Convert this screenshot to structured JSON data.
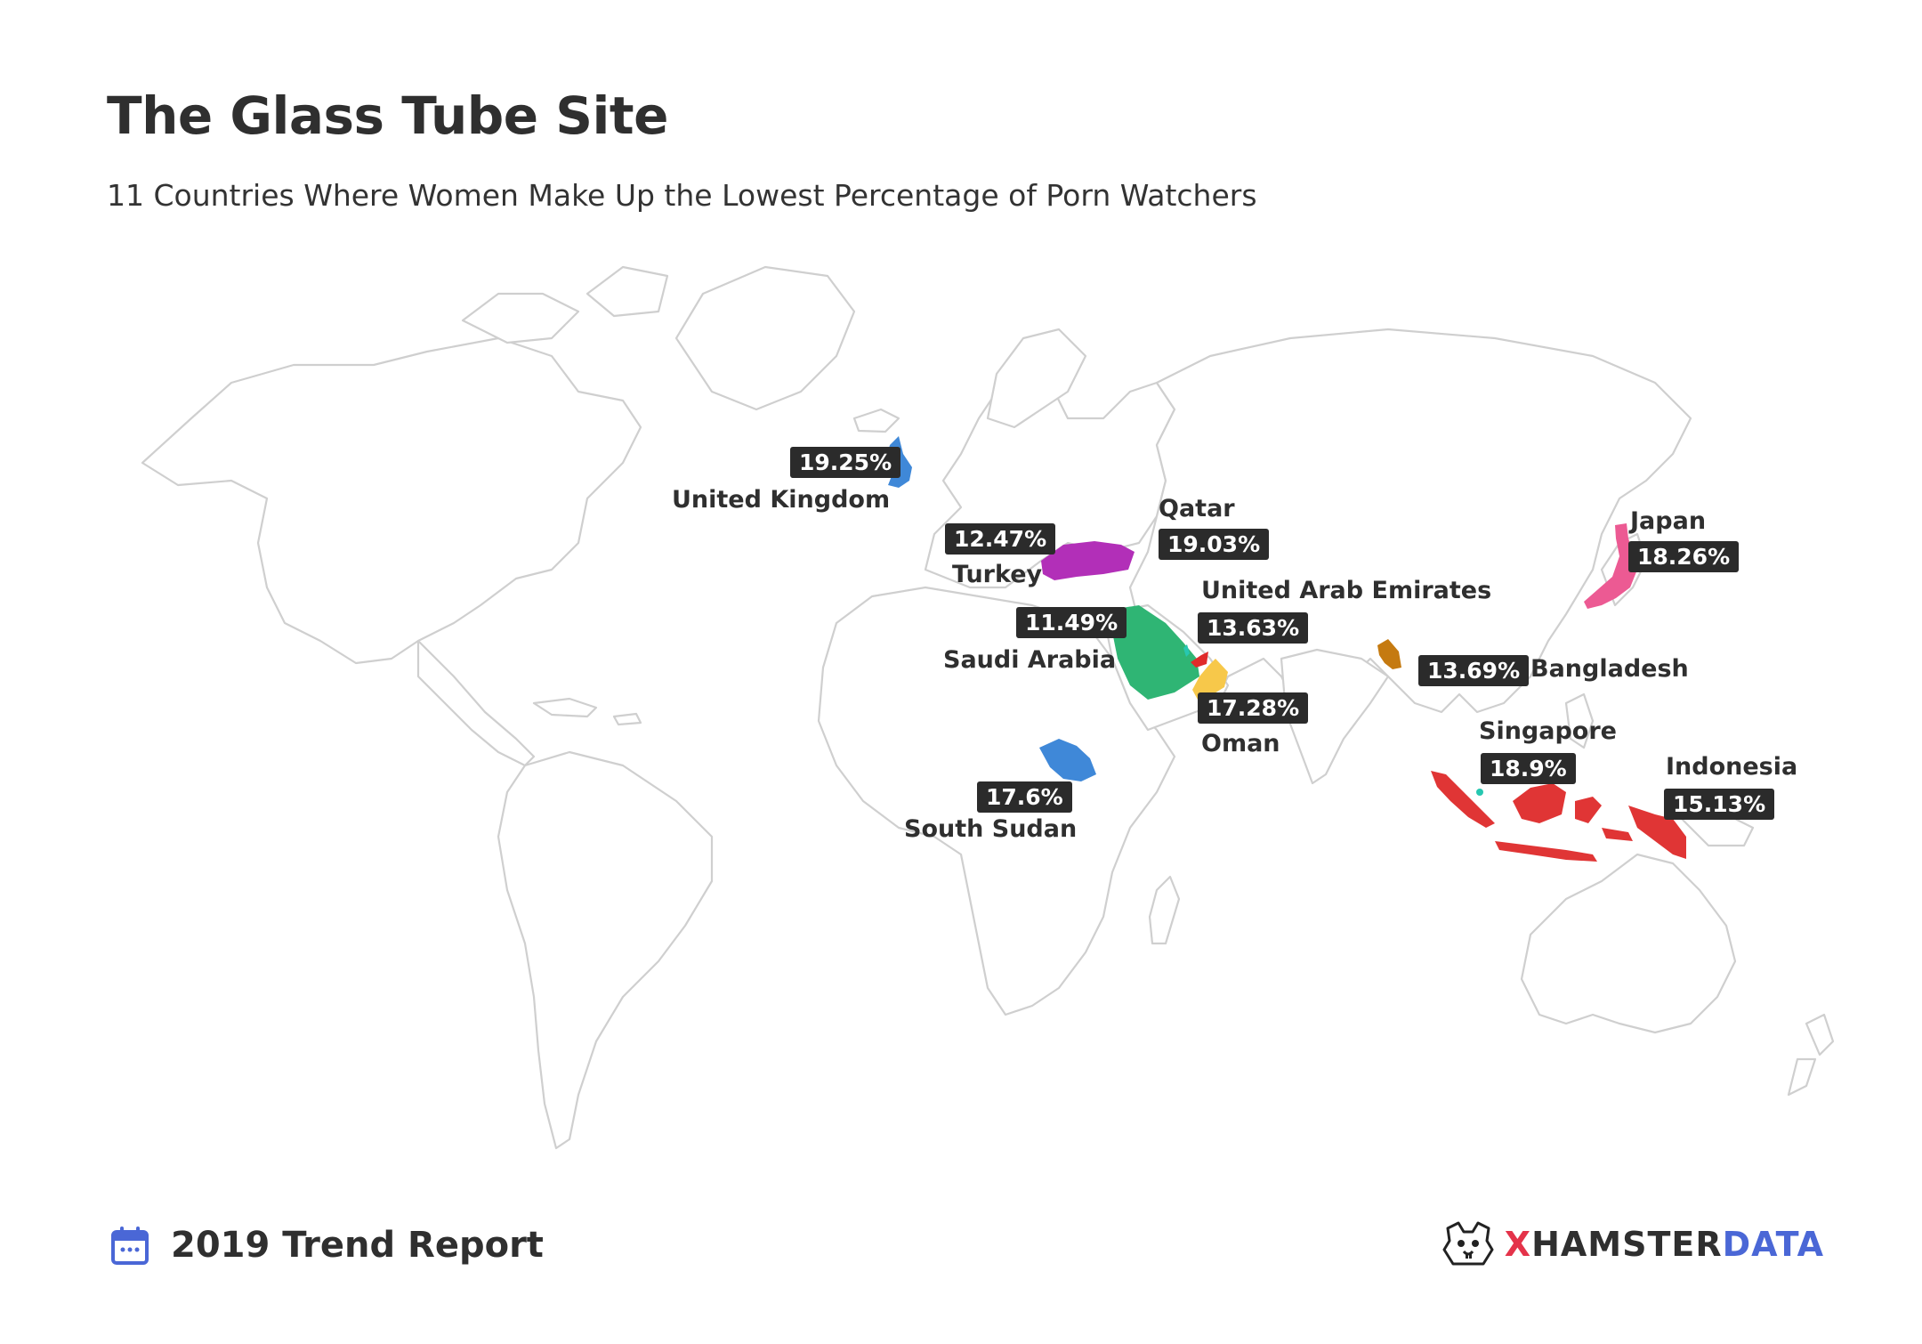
{
  "title": "The Glass Tube Site",
  "subtitle": "11 Countries Where Women Make Up the Lowest Percentage of Porn Watchers",
  "footer": {
    "report": "2019 Trend Report",
    "calendar_icon": "calendar-icon",
    "brand_icon": "hamster-icon",
    "brand_x": "X",
    "brand_hamster": "HAMSTER",
    "brand_data": "DATA"
  },
  "colors": {
    "uk": "#3f88d8",
    "turkey": "#b22fb8",
    "saudi_arabia": "#2fb574",
    "qatar": "#27c7b0",
    "uae": "#e02a2a",
    "oman": "#f7c84a",
    "south_sudan": "#3f88d8",
    "bangladesh": "#c57a10",
    "japan": "#ec5a93",
    "singapore": "#27c7b0",
    "indonesia": "#e03535",
    "brand_red": "#e4334a",
    "brand_blue": "#4a67d6"
  },
  "countries": [
    {
      "key": "uk",
      "name": "United Kingdom",
      "value": "19.25%"
    },
    {
      "key": "turkey",
      "name": "Turkey",
      "value": "12.47%"
    },
    {
      "key": "qatar",
      "name": "Qatar",
      "value": "19.03%"
    },
    {
      "key": "uae",
      "name": "United Arab Emirates",
      "value": "13.63%"
    },
    {
      "key": "saudi_arabia",
      "name": "Saudi Arabia",
      "value": "11.49%"
    },
    {
      "key": "oman",
      "name": "Oman",
      "value": "17.28%"
    },
    {
      "key": "south_sudan",
      "name": "South Sudan",
      "value": "17.6%"
    },
    {
      "key": "bangladesh",
      "name": "Bangladesh",
      "value": "13.69%"
    },
    {
      "key": "japan",
      "name": "Japan",
      "value": "18.26%"
    },
    {
      "key": "singapore",
      "name": "Singapore",
      "value": "18.9%"
    },
    {
      "key": "indonesia",
      "name": "Indonesia",
      "value": "15.13%"
    }
  ]
}
